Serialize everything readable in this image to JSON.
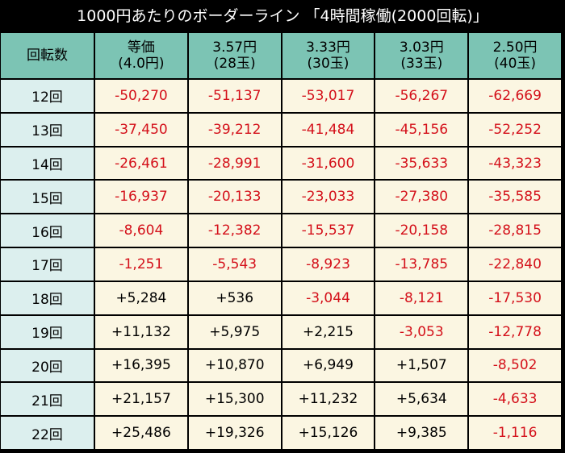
{
  "title": "1000円あたりのボーダーライン 「4時間稼働(2000回転)」",
  "headers": [
    {
      "line1": "回転数",
      "line2": ""
    },
    {
      "line1": "等価",
      "line2": "(4.0円)"
    },
    {
      "line1": "3.57円",
      "line2": "(28玉)"
    },
    {
      "line1": "3.33円",
      "line2": "(30玉)"
    },
    {
      "line1": "3.03円",
      "line2": "(33玉)"
    },
    {
      "line1": "2.50円",
      "line2": "(40玉)"
    }
  ],
  "rows": [
    {
      "label": "12回",
      "values": [
        "-50,270",
        "-51,137",
        "-53,017",
        "-56,267",
        "-62,669"
      ]
    },
    {
      "label": "13回",
      "values": [
        "-37,450",
        "-39,212",
        "-41,484",
        "-45,156",
        "-52,252"
      ]
    },
    {
      "label": "14回",
      "values": [
        "-26,461",
        "-28,991",
        "-31,600",
        "-35,633",
        "-43,323"
      ]
    },
    {
      "label": "15回",
      "values": [
        "-16,937",
        "-20,133",
        "-23,033",
        "-27,380",
        "-35,585"
      ]
    },
    {
      "label": "16回",
      "values": [
        "-8,604",
        "-12,382",
        "-15,537",
        "-20,158",
        "-28,815"
      ]
    },
    {
      "label": "17回",
      "values": [
        "-1,251",
        "-5,543",
        "-8,923",
        "-13,785",
        "-22,840"
      ]
    },
    {
      "label": "18回",
      "values": [
        "+5,284",
        "+536",
        "-3,044",
        "-8,121",
        "-17,530"
      ]
    },
    {
      "label": "19回",
      "values": [
        "+11,132",
        "+5,975",
        "+2,215",
        "-3,053",
        "-12,778"
      ]
    },
    {
      "label": "20回",
      "values": [
        "+16,395",
        "+10,870",
        "+6,949",
        "+1,507",
        "-8,502"
      ]
    },
    {
      "label": "21回",
      "values": [
        "+21,157",
        "+15,300",
        "+11,232",
        "+5,634",
        "-4,633"
      ]
    },
    {
      "label": "22回",
      "values": [
        "+25,486",
        "+19,326",
        "+15,126",
        "+9,385",
        "-1,116"
      ]
    }
  ],
  "colors": {
    "negative": "#d4101a",
    "positive": "#000000",
    "header_bg": "#7cc4b4",
    "label_bg": "#dcefee",
    "cell_bg": "#fbf6e2",
    "title_bg": "#000000"
  }
}
